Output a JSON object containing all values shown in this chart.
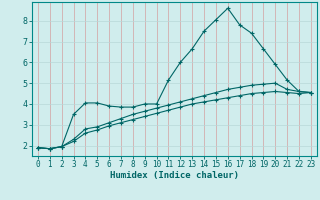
{
  "title": "",
  "xlabel": "Humidex (Indice chaleur)",
  "ylabel": "",
  "bg_color": "#d0eded",
  "grid_color_v": "#d4a0a0",
  "grid_color_h": "#b8d8d8",
  "line_color": "#006666",
  "spine_color": "#008888",
  "xlim": [
    -0.5,
    23.5
  ],
  "ylim": [
    1.5,
    8.9
  ],
  "yticks": [
    2,
    3,
    4,
    5,
    6,
    7,
    8
  ],
  "xticks": [
    0,
    1,
    2,
    3,
    4,
    5,
    6,
    7,
    8,
    9,
    10,
    11,
    12,
    13,
    14,
    15,
    16,
    17,
    18,
    19,
    20,
    21,
    22,
    23
  ],
  "line1_x": [
    0,
    1,
    2,
    3,
    4,
    5,
    6,
    7,
    8,
    9,
    10,
    11,
    12,
    13,
    14,
    15,
    16,
    17,
    18,
    19,
    20,
    21,
    22,
    23
  ],
  "line1_y": [
    1.9,
    1.85,
    1.95,
    3.5,
    4.05,
    4.05,
    3.9,
    3.85,
    3.85,
    4.0,
    4.0,
    5.15,
    6.0,
    6.65,
    7.5,
    8.05,
    8.6,
    7.8,
    7.4,
    6.65,
    5.9,
    5.15,
    4.6,
    4.55
  ],
  "line2_x": [
    0,
    1,
    2,
    3,
    4,
    5,
    6,
    7,
    8,
    9,
    10,
    11,
    12,
    13,
    14,
    15,
    16,
    17,
    18,
    19,
    20,
    21,
    22,
    23
  ],
  "line2_y": [
    1.9,
    1.85,
    1.95,
    2.3,
    2.8,
    2.9,
    3.1,
    3.3,
    3.5,
    3.65,
    3.8,
    3.95,
    4.1,
    4.25,
    4.4,
    4.55,
    4.7,
    4.8,
    4.9,
    4.95,
    5.0,
    4.7,
    4.6,
    4.55
  ],
  "line3_x": [
    0,
    1,
    2,
    3,
    4,
    5,
    6,
    7,
    8,
    9,
    10,
    11,
    12,
    13,
    14,
    15,
    16,
    17,
    18,
    19,
    20,
    21,
    22,
    23
  ],
  "line3_y": [
    1.9,
    1.85,
    1.95,
    2.2,
    2.6,
    2.75,
    2.95,
    3.1,
    3.25,
    3.4,
    3.55,
    3.7,
    3.85,
    4.0,
    4.1,
    4.2,
    4.3,
    4.4,
    4.5,
    4.55,
    4.6,
    4.55,
    4.5,
    4.55
  ],
  "tick_fontsize": 5.5,
  "xlabel_fontsize": 6.5
}
